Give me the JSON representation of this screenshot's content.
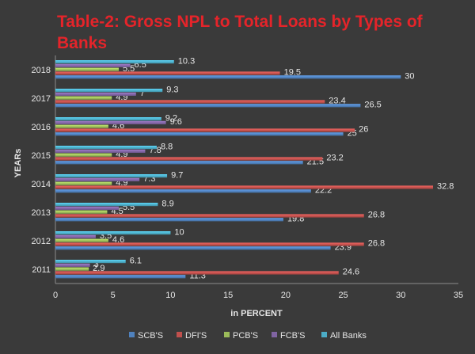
{
  "chart_data": {
    "type": "bar",
    "orientation": "horizontal",
    "title": "Table-2: Gross NPL to Total Loans by Types of Banks",
    "xlabel": "in PERCENT",
    "ylabel": "YEARs",
    "xlim": [
      0,
      35
    ],
    "x_ticks": [
      "0",
      "5",
      "10",
      "15",
      "20",
      "25",
      "30",
      "35"
    ],
    "categories": [
      "2011",
      "2012",
      "2013",
      "2014",
      "2015",
      "2016",
      "2017",
      "2018"
    ],
    "series": [
      {
        "name": "SCB'S",
        "color": "#4f81bd",
        "values": [
          11.3,
          23.9,
          19.8,
          22.2,
          21.5,
          25,
          26.5,
          30
        ]
      },
      {
        "name": "DFI'S",
        "color": "#c0504d",
        "values": [
          24.6,
          26.8,
          26.8,
          32.8,
          23.2,
          26,
          23.4,
          19.5
        ]
      },
      {
        "name": "PCB'S",
        "color": "#9bbb59",
        "values": [
          2.9,
          4.6,
          4.5,
          4.9,
          4.9,
          4.6,
          4.9,
          5.5
        ]
      },
      {
        "name": "FCB'S",
        "color": "#8064a2",
        "values": [
          3,
          3.5,
          5.5,
          7.3,
          7.8,
          9.6,
          7,
          6.5
        ]
      },
      {
        "name": "All Banks",
        "color": "#4bacc6",
        "values": [
          6.1,
          10,
          8.9,
          9.7,
          8.8,
          9.2,
          9.3,
          10.3
        ]
      }
    ],
    "legend_position": "bottom",
    "grid": false
  }
}
